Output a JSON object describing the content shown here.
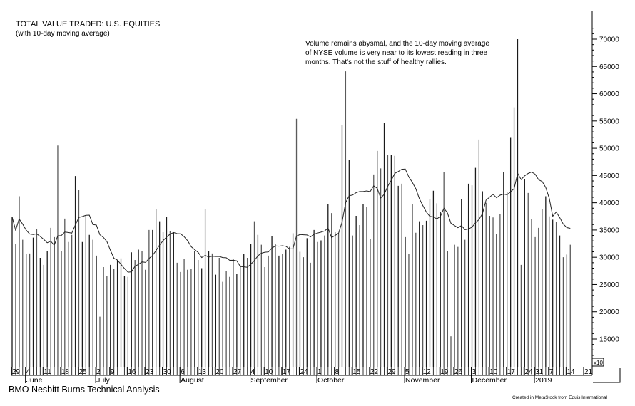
{
  "chart_data": {
    "type": "bar",
    "title": "TOTAL VALUE TRADED: U.S. EQUITIES",
    "subtitle": "(with 10-day moving average)",
    "annotation": [
      "Volume remains abysmal, and the 10-day moving average",
      "of NYSE volume is very near to its lowest reading in three",
      "months. That's not the stuff of healthy rallies."
    ],
    "source": "BMO Nesbitt Burns Technical Analysis",
    "credit": "Created in MetaStock from Equis International",
    "y_multiplier_label": "x10",
    "ylim": [
      10000,
      72000
    ],
    "yticks": [
      15000,
      20000,
      25000,
      30000,
      35000,
      40000,
      45000,
      50000,
      55000,
      60000,
      65000,
      70000
    ],
    "ytick_labels": [
      "15000",
      "20000",
      "25000",
      "30000",
      "35000",
      "40000",
      "45000",
      "50000",
      "55000",
      "60000",
      "65000",
      "70000"
    ],
    "moving_average_period": 10,
    "series": [
      {
        "name": "Total value traded",
        "type": "bar",
        "values": [
          37400,
          32500,
          41200,
          33200,
          30600,
          30700,
          33600,
          35200,
          29900,
          28600,
          31100,
          35400,
          33700,
          50500,
          31100,
          37100,
          32800,
          34100,
          44900,
          42300,
          32800,
          37600,
          34100,
          33200,
          30300,
          19100,
          28200,
          26500,
          28600,
          27800,
          29500,
          29800,
          26500,
          26400,
          30900,
          29500,
          31400,
          31100,
          27700,
          35000,
          35000,
          38800,
          36600,
          34600,
          37400,
          34800,
          34500,
          29000,
          27300,
          29700,
          27700,
          27800,
          31200,
          29500,
          28000,
          38800,
          31200,
          30700,
          26800,
          29900,
          25500,
          27500,
          26400,
          29700,
          26900,
          28500,
          30600,
          29900,
          32400,
          36600,
          34100,
          32300,
          28200,
          30300,
          33900,
          32400,
          30300,
          30600,
          31400,
          31900,
          34400,
          55400,
          31000,
          30000,
          33500,
          29000,
          35000,
          32800,
          33100,
          34000,
          39700,
          38100,
          34600,
          34400,
          54200,
          64100,
          47900,
          34000,
          37600,
          35900,
          39700,
          39300,
          33300,
          45200,
          49500,
          46300,
          54600,
          48700,
          48700,
          48600,
          43100,
          43500,
          33700,
          30600,
          39700,
          34500,
          36600,
          35900,
          36700,
          40600,
          42200,
          39900,
          38300,
          45700,
          31100,
          15500,
          32300,
          31900,
          40600,
          33200,
          43500,
          43200,
          46400,
          51600,
          42100,
          40000,
          37600,
          37300,
          34300,
          37900,
          45600,
          41900,
          51900,
          57500,
          70000,
          28600,
          44300,
          41800,
          37000,
          33700,
          35400,
          38800,
          41200,
          37500,
          36900,
          36500,
          34000,
          30000,
          30500,
          32300
        ]
      },
      {
        "name": "10-day moving average",
        "type": "line",
        "derived_from": "Total value traded"
      }
    ],
    "x_day_labels": [
      {
        "label": "29",
        "index": 0
      },
      {
        "label": "4",
        "index": 4
      },
      {
        "label": "11",
        "index": 9
      },
      {
        "label": "18",
        "index": 14
      },
      {
        "label": "25",
        "index": 19
      },
      {
        "label": "2",
        "index": 24
      },
      {
        "label": "9",
        "index": 28
      },
      {
        "label": "16",
        "index": 33
      },
      {
        "label": "23",
        "index": 38
      },
      {
        "label": "30",
        "index": 43
      },
      {
        "label": "6",
        "index": 48
      },
      {
        "label": "13",
        "index": 53
      },
      {
        "label": "20",
        "index": 58
      },
      {
        "label": "27",
        "index": 63
      },
      {
        "label": "4",
        "index": 68
      },
      {
        "label": "10",
        "index": 72
      },
      {
        "label": "17",
        "index": 77
      },
      {
        "label": "24",
        "index": 82
      },
      {
        "label": "1",
        "index": 87
      },
      {
        "label": "8",
        "index": 92
      },
      {
        "label": "15",
        "index": 97
      },
      {
        "label": "22",
        "index": 102
      },
      {
        "label": "29",
        "index": 107
      },
      {
        "label": "5",
        "index": 112
      },
      {
        "label": "12",
        "index": 117
      },
      {
        "label": "19",
        "index": 122
      },
      {
        "label": "26",
        "index": 126
      },
      {
        "label": "3",
        "index": 131
      },
      {
        "label": "10",
        "index": 136
      },
      {
        "label": "17",
        "index": 141
      },
      {
        "label": "24",
        "index": 146
      },
      {
        "label": "31",
        "index": 149
      },
      {
        "label": "7",
        "index": 153
      },
      {
        "label": "14",
        "index": 158
      },
      {
        "label": "21",
        "index": 163
      }
    ],
    "x_month_labels": [
      {
        "label": "June",
        "index": 4
      },
      {
        "label": "July",
        "index": 24
      },
      {
        "label": "August",
        "index": 48
      },
      {
        "label": "September",
        "index": 68
      },
      {
        "label": "October",
        "index": 87
      },
      {
        "label": "November",
        "index": 112
      },
      {
        "label": "December",
        "index": 131
      },
      {
        "label": "2019",
        "index": 149
      }
    ]
  }
}
